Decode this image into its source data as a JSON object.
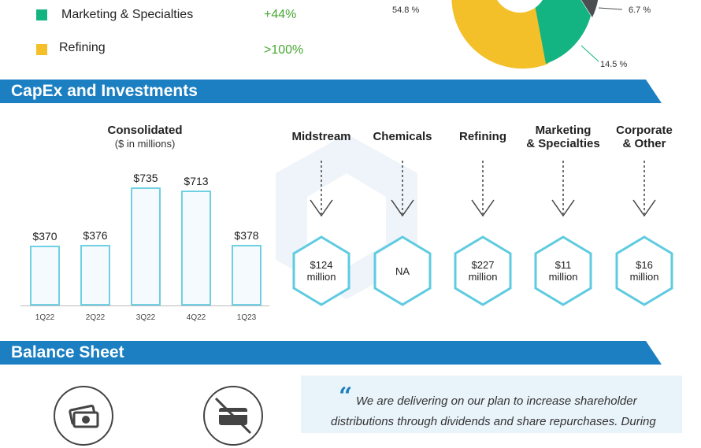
{
  "top_legend": {
    "items": [
      {
        "label": "Marketing & Specialties",
        "value": "+44%",
        "color": "#14b482"
      },
      {
        "label": "Refining",
        "value": ">100%",
        "color": "#f4c02a"
      }
    ]
  },
  "pie": {
    "labels": [
      "54.8 %",
      "6.7 %",
      "14.5 %"
    ],
    "colors": {
      "yellow": "#f4c02a",
      "green": "#14b482",
      "gray": "#4b4f52"
    }
  },
  "capex": {
    "banner": "CapEx and Investments",
    "consolidated_title": "Consolidated",
    "consolidated_sub": "($ in millions)",
    "segments": [
      {
        "name_line1": "Midstream",
        "name_line2": "",
        "value_line1": "$124",
        "value_line2": "million"
      },
      {
        "name_line1": "Chemicals",
        "name_line2": "",
        "value_line1": "NA",
        "value_line2": ""
      },
      {
        "name_line1": "Refining",
        "name_line2": "",
        "value_line1": "$227",
        "value_line2": "million"
      },
      {
        "name_line1": "Marketing",
        "name_line2": "& Specialties",
        "value_line1": "$11",
        "value_line2": "million"
      },
      {
        "name_line1": "Corporate",
        "name_line2": "& Other",
        "value_line1": "$16",
        "value_line2": "million"
      }
    ]
  },
  "chart_data": {
    "type": "bar",
    "title": "Consolidated",
    "subtitle": "($ in millions)",
    "categories": [
      "1Q22",
      "2Q22",
      "3Q22",
      "4Q22",
      "1Q23"
    ],
    "values": [
      370,
      376,
      735,
      713,
      378
    ],
    "data_labels": [
      "$370",
      "$376",
      "$735",
      "$713",
      "$378"
    ],
    "xlabel": "",
    "ylabel": "",
    "ylim": [
      0,
      735
    ]
  },
  "balance": {
    "banner": "Balance Sheet",
    "quote_line1": "We are delivering on our plan to increase shareholder",
    "quote_line2": "distributions through dividends and share repurchases. During"
  }
}
